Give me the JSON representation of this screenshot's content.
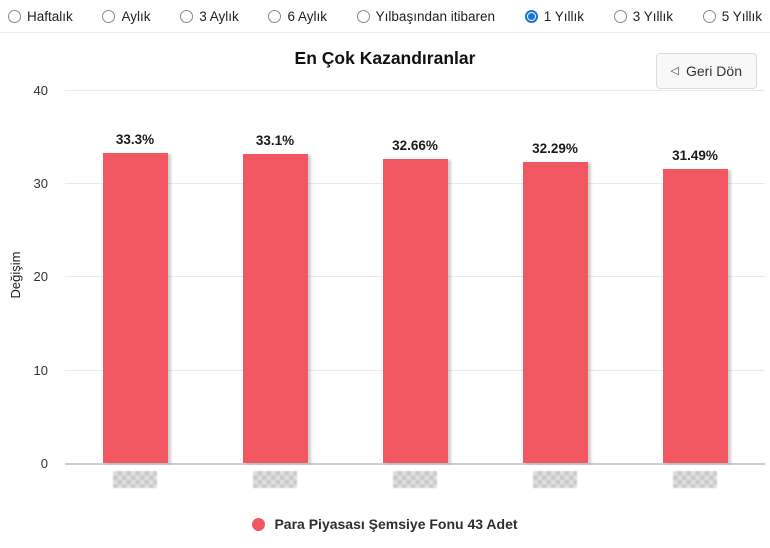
{
  "toolbar": {
    "options": [
      {
        "label": "Haftalık",
        "selected": false
      },
      {
        "label": "Aylık",
        "selected": false
      },
      {
        "label": "3 Aylık",
        "selected": false
      },
      {
        "label": "6 Aylık",
        "selected": false
      },
      {
        "label": "Yılbaşından itibaren",
        "selected": false
      },
      {
        "label": "1 Yıllık",
        "selected": true
      },
      {
        "label": "3 Yıllık",
        "selected": false
      },
      {
        "label": "5 Yıllık",
        "selected": false
      }
    ]
  },
  "header": {
    "title": "En Çok Kazandıranlar",
    "back_button": {
      "icon": "◁",
      "label": "Geri Dön"
    }
  },
  "chart_data": {
    "type": "bar",
    "title": "En Çok Kazandıranlar",
    "ylabel": "Değişim",
    "ylim": [
      0,
      40
    ],
    "yticks": [
      0,
      10,
      20,
      30,
      40
    ],
    "grid": true,
    "categories": [
      "",
      "",
      "",
      "",
      ""
    ],
    "x_labels_note": "x-axis category labels are pixelated/redacted in the source image",
    "values": [
      33.3,
      33.1,
      32.66,
      32.29,
      31.49
    ],
    "value_labels": [
      "33.3%",
      "33.1%",
      "32.66%",
      "32.29%",
      "31.49%"
    ],
    "series_name": "Para Piyasası Şemsiye Fonu 43 Adet",
    "legend_position": "bottom"
  },
  "colors": {
    "bar": "#f25862",
    "radio_selected": "#1b75d0",
    "grid": "#e9e9e9",
    "axis": "#c9cfd6"
  }
}
